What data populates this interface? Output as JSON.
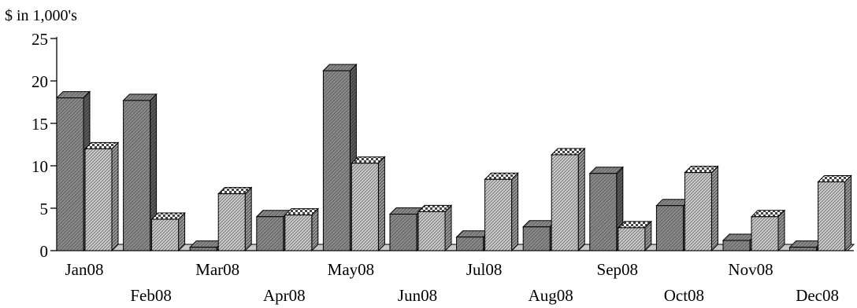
{
  "chart_data": {
    "type": "bar",
    "ylabel": "$ in 1,000's",
    "ylim": [
      0,
      25
    ],
    "yticks": [
      0,
      5,
      10,
      15,
      20,
      25
    ],
    "categories": [
      "Jan08",
      "Feb08",
      "Mar08",
      "Apr08",
      "May08",
      "Jun08",
      "Jul08",
      "Aug08",
      "Sep08",
      "Oct08",
      "Nov08",
      "Dec08"
    ],
    "series": [
      {
        "values": [
          18.0,
          17.7,
          0.4,
          4.0,
          21.2,
          4.3,
          1.6,
          2.8,
          9.1,
          5.3,
          1.2,
          0.4
        ]
      },
      {
        "values": [
          12.0,
          3.7,
          6.7,
          4.2,
          10.3,
          4.6,
          8.4,
          11.3,
          2.7,
          9.2,
          4.0,
          8.1
        ]
      }
    ],
    "grid": false,
    "style": "3d"
  }
}
